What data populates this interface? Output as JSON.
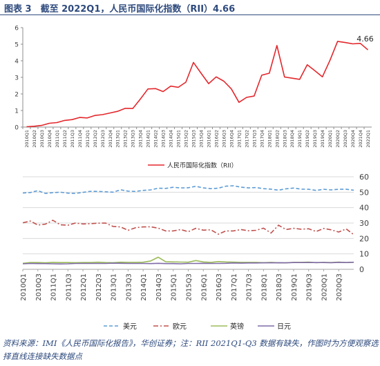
{
  "header": {
    "title": "图表 3　截至 2022Q1，人民币国际化指数（RII）4.66"
  },
  "footnote": "资料来源：IMI《人民币国际化报告》，华创证券；注：RII 2021Q1-Q3 数据有缺失，作图时为方便观察选择直线连接缺失数据点",
  "chart_data": [
    {
      "type": "line",
      "title": "",
      "categories": [
        "2010Q1",
        "2010Q2",
        "2010Q3",
        "2010Q4",
        "2011Q1",
        "2011Q2",
        "2011Q3",
        "2011Q4",
        "2012Q1",
        "2012Q2",
        "2012Q3",
        "2012Q4",
        "2013Q1",
        "2013Q2",
        "2013Q3",
        "2013Q4",
        "2014Q1",
        "2014Q2",
        "2014Q3",
        "2014Q4",
        "2015Q1",
        "2015Q2",
        "2015Q3",
        "2015Q4",
        "2016Q1",
        "2016Q2",
        "2016Q3",
        "2016Q4",
        "2017Q1",
        "2017Q2",
        "2017Q3",
        "2017Q4",
        "2018Q1",
        "2018Q2",
        "2018Q3",
        "2018Q4",
        "2019Q1",
        "2019Q2",
        "2019Q3",
        "2019Q4",
        "2020Q1",
        "2020Q2",
        "2020Q3",
        "2020Q4",
        "2021Q4",
        "2022Q1"
      ],
      "series": [
        {
          "name": "人民币国际化指数（RII）",
          "color": "#e3262b",
          "values": [
            0.02,
            0.05,
            0.1,
            0.23,
            0.27,
            0.4,
            0.45,
            0.58,
            0.55,
            0.7,
            0.75,
            0.85,
            0.95,
            1.13,
            1.12,
            1.69,
            2.3,
            2.32,
            2.14,
            2.47,
            2.4,
            2.71,
            3.9,
            3.25,
            2.62,
            3.03,
            2.77,
            2.3,
            1.49,
            1.79,
            1.87,
            3.13,
            3.25,
            4.92,
            3.02,
            2.95,
            2.88,
            3.76,
            3.4,
            3.03,
            4.03,
            5.17,
            5.1,
            5.02,
            5.05,
            4.66
          ]
        }
      ],
      "annotation": "4.66",
      "ylim": [
        0,
        6
      ],
      "yticks": [
        0,
        1,
        2,
        3,
        4,
        5,
        6
      ],
      "legend": "bottom-center",
      "grid": false
    },
    {
      "type": "line",
      "title": "",
      "categories": [
        "2010Q1",
        "2010Q2",
        "2010Q3",
        "2010Q4",
        "2011Q1",
        "2011Q2",
        "2011Q3",
        "2011Q4",
        "2012Q1",
        "2012Q2",
        "2012Q3",
        "2012Q4",
        "2013Q1",
        "2013Q2",
        "2013Q3",
        "2013Q4",
        "2014Q1",
        "2014Q2",
        "2014Q3",
        "2014Q4",
        "2015Q1",
        "2015Q2",
        "2015Q3",
        "2015Q4",
        "2016Q1",
        "2016Q2",
        "2016Q3",
        "2016Q4",
        "2017Q1",
        "2017Q2",
        "2017Q3",
        "2017Q4",
        "2018Q1",
        "2018Q2",
        "2018Q3",
        "2018Q4",
        "2019Q1",
        "2019Q2",
        "2019Q3",
        "2019Q4",
        "2020Q1",
        "2020Q2",
        "2020Q3",
        "2020Q4",
        "2021Q1"
      ],
      "series": [
        {
          "name": "美元",
          "color": "#5b9bd5",
          "dash": "dashed",
          "values": [
            49.5,
            49.8,
            51,
            49.2,
            49.7,
            50,
            49.4,
            49.2,
            49.9,
            50.6,
            50.5,
            50.3,
            50,
            51.6,
            50.7,
            50.5,
            51.2,
            51.5,
            52.6,
            52.5,
            53.2,
            52.8,
            52.9,
            53.8,
            52.8,
            52.3,
            52.6,
            53.9,
            54.2,
            53.3,
            52.8,
            53,
            52.3,
            52,
            51.3,
            52.2,
            52.7,
            52,
            51.9,
            51.2,
            51.9,
            51.5,
            51.9,
            51.9,
            51.3
          ]
        },
        {
          "name": "欧元",
          "color": "#c0504d",
          "dash": "dashdot",
          "values": [
            30.2,
            31.3,
            28.7,
            29.3,
            31.8,
            28.9,
            28.6,
            30,
            29.4,
            29.6,
            29.9,
            30,
            27.8,
            27.5,
            25.3,
            27,
            27.5,
            27.6,
            26.7,
            24.9,
            24.9,
            25.8,
            24.4,
            26.6,
            25.4,
            25.6,
            22.8,
            24.9,
            24.9,
            25.8,
            25,
            25.3,
            26.7,
            23.5,
            28.6,
            25.8,
            26.6,
            26,
            26.3,
            24.5,
            26.5,
            25.6,
            24.2,
            26.2,
            22.5
          ]
        },
        {
          "name": "英镑",
          "color": "#9bbb59",
          "dash": "solid",
          "values": [
            3.9,
            4.4,
            4.4,
            4.2,
            4.5,
            4.4,
            4.4,
            4.3,
            4.4,
            4.4,
            4.6,
            4.4,
            4.3,
            4.6,
            4.5,
            4.5,
            4.6,
            5.4,
            7.9,
            4.9,
            4.8,
            4.7,
            4.6,
            5.7,
            4.8,
            4.5,
            5,
            4.8,
            4.7,
            4.5,
            4.5,
            4.5,
            4.3,
            4.5,
            4.2,
            4.2,
            4.5,
            4.5,
            4.7,
            4.3,
            4.5,
            4.4,
            4.7,
            4.4,
            4.5
          ]
        },
        {
          "name": "日元",
          "color": "#7f6aa7",
          "dash": "solid",
          "values": [
            3.6,
            3.8,
            3.7,
            3.7,
            3.6,
            3.5,
            3.6,
            3.8,
            3.8,
            3.8,
            3.8,
            3.8,
            4,
            3.9,
            3.8,
            3.8,
            3.8,
            3.7,
            3.9,
            3.7,
            3.7,
            3.6,
            3.8,
            3.8,
            3.9,
            3.8,
            3.8,
            3.9,
            4.1,
            4,
            4.1,
            4.1,
            4.2,
            4.2,
            4.3,
            4.2,
            4.4,
            4.4,
            4.4,
            4.4,
            4.4,
            4.3,
            4.5,
            4.4,
            4.6
          ]
        }
      ],
      "xtick_labels": [
        "2010Q1",
        "2010Q3",
        "2011Q1",
        "2011Q3",
        "2012Q1",
        "2012Q3",
        "2013Q1",
        "2013Q3",
        "2014Q1",
        "2014Q3",
        "2015Q1",
        "2015Q3",
        "2016Q1",
        "2016Q3",
        "2017Q1",
        "2017Q3",
        "2018Q1",
        "2018Q3",
        "2019Q1",
        "2019Q3",
        "2020Q1",
        "2020Q3"
      ],
      "ylim": [
        0,
        60
      ],
      "yticks": [
        0,
        10,
        20,
        30,
        40,
        50,
        60
      ],
      "legend": "bottom-center",
      "grid": true
    }
  ]
}
